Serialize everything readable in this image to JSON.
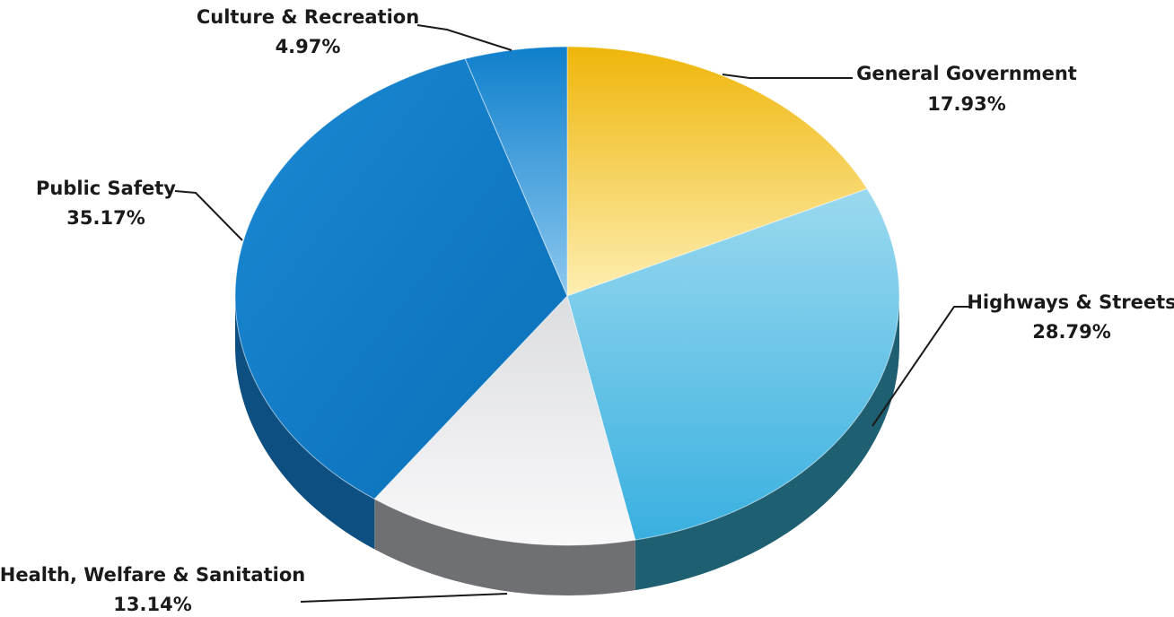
{
  "chart_data": {
    "type": "pie",
    "style": "3d",
    "title": "",
    "slices": [
      {
        "label": "General Government",
        "value": 17.93,
        "value_label": "17.93%",
        "color": "#f2c21b"
      },
      {
        "label": "Highways & Streets",
        "value": 28.79,
        "value_label": "28.79%",
        "color": "#6cc7e6"
      },
      {
        "label": "Health, Welfare & Sanitation",
        "value": 13.14,
        "value_label": "13.14%",
        "color": "#ececed"
      },
      {
        "label": "Public Safety",
        "value": 35.17,
        "value_label": "35.17%",
        "color": "#1e86cf"
      },
      {
        "label": "Culture & Recreation",
        "value": 4.97,
        "value_label": "4.97%",
        "color": "#2a94d8"
      }
    ]
  }
}
